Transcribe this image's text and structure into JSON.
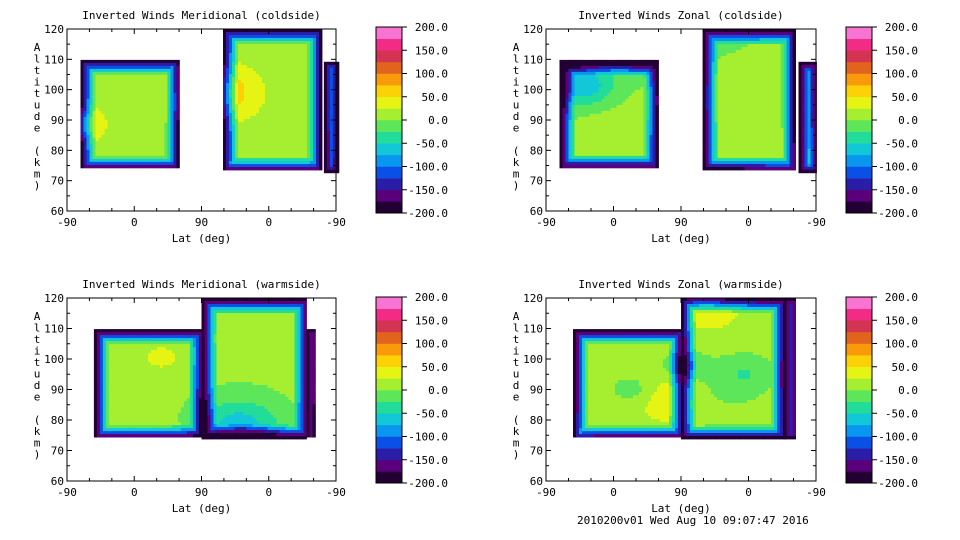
{
  "footer": "2010200v01 Wed Aug 10 09:07:47 2016",
  "colorbar_stops": [
    "#220033",
    "#5a007a",
    "#2a1ea8",
    "#0a50e6",
    "#0896f0",
    "#12c8d8",
    "#22dc9a",
    "#5ee65a",
    "#a6ee30",
    "#e6f414",
    "#fcd206",
    "#f89a0a",
    "#e0641e",
    "#d23452",
    "#f22c86",
    "#f774d2"
  ],
  "chart_data": [
    {
      "type": "heatmap",
      "title": "Inverted Winds Meridional (coldside)",
      "xlabel": "Lat (deg)",
      "ylabel": "Altitude (km)",
      "x_ticks": [
        "-90",
        "0",
        "90",
        "0",
        "-90"
      ],
      "y_ticks": [
        "60",
        "70",
        "80",
        "90",
        "100",
        "110",
        "120"
      ],
      "ylim": [
        60,
        120
      ],
      "colorbar_ticks": [
        "200.0",
        "150.0",
        "100.0",
        "50.0",
        "0.0",
        "-50.0",
        "-100.0",
        "-150.0",
        "-200.0"
      ],
      "colorbar_range": [
        -200,
        200
      ],
      "field_seed": 1,
      "mean_value": 15
    },
    {
      "type": "heatmap",
      "title": "Inverted Winds Zonal (coldside)",
      "xlabel": "Lat (deg)",
      "ylabel": "Altitude (km)",
      "x_ticks": [
        "-90",
        "0",
        "90",
        "0",
        "-90"
      ],
      "y_ticks": [
        "60",
        "70",
        "80",
        "90",
        "100",
        "110",
        "120"
      ],
      "ylim": [
        60,
        120
      ],
      "colorbar_ticks": [
        "200.0",
        "150.0",
        "100.0",
        "50.0",
        "0.0",
        "-50.0",
        "-100.0",
        "-150.0",
        "-200.0"
      ],
      "colorbar_range": [
        -200,
        200
      ],
      "field_seed": 2,
      "mean_value": 0
    },
    {
      "type": "heatmap",
      "title": "Inverted Winds Meridional (warmside)",
      "xlabel": "Lat (deg)",
      "ylabel": "Altitude (km)",
      "x_ticks": [
        "-90",
        "0",
        "90",
        "0",
        "-90"
      ],
      "y_ticks": [
        "60",
        "70",
        "80",
        "90",
        "100",
        "110",
        "120"
      ],
      "ylim": [
        60,
        120
      ],
      "colorbar_ticks": [
        "200.0",
        "150.0",
        "100.0",
        "50.0",
        "0.0",
        "-50.0",
        "-100.0",
        "-150.0",
        "-200.0"
      ],
      "colorbar_range": [
        -200,
        200
      ],
      "field_seed": 3,
      "mean_value": 5
    },
    {
      "type": "heatmap",
      "title": "Inverted Winds Zonal (warmside)",
      "xlabel": "Lat (deg)",
      "ylabel": "Altitude (km)",
      "x_ticks": [
        "-90",
        "0",
        "90",
        "0",
        "-90"
      ],
      "y_ticks": [
        "60",
        "70",
        "80",
        "90",
        "100",
        "110",
        "120"
      ],
      "ylim": [
        60,
        120
      ],
      "colorbar_ticks": [
        "200.0",
        "150.0",
        "100.0",
        "50.0",
        "0.0",
        "-50.0",
        "-100.0",
        "-150.0",
        "-200.0"
      ],
      "colorbar_range": [
        -200,
        200
      ],
      "field_seed": 4,
      "mean_value": 10
    }
  ]
}
